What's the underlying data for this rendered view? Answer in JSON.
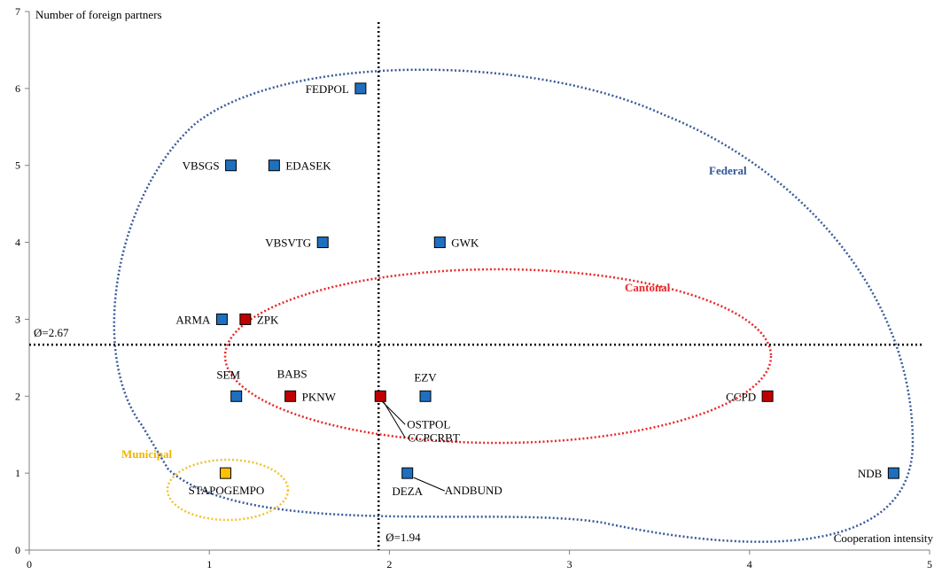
{
  "chart_data": {
    "type": "scatter",
    "ylabel": "Number of foreign partners",
    "xlabel": "Cooperation intensity",
    "xlim": [
      0,
      5
    ],
    "ylim": [
      0,
      7
    ],
    "xticks": [
      "0",
      "1",
      "2",
      "3",
      "4",
      "5"
    ],
    "yticks": [
      "0",
      "1",
      "2",
      "3",
      "4",
      "5",
      "6",
      "7"
    ],
    "grid": false,
    "mean_x": {
      "value": 1.94,
      "label": "Ø=1.94"
    },
    "mean_y": {
      "value": 2.67,
      "label": "Ø=2.67"
    },
    "colors": {
      "Federal": "#1f6fbf",
      "Cantonal": "#c00000",
      "Municipal": "#ffc000",
      "federal_ellipse": "#3a5a9a",
      "cantonal_ellipse": "#e8282a",
      "municipal_ellipse": "#f2c230"
    },
    "groups": [
      {
        "name": "Federal"
      },
      {
        "name": "Cantonal"
      },
      {
        "name": "Municipal"
      }
    ],
    "points": [
      {
        "label": "FEDPOL",
        "x": 1.84,
        "y": 6,
        "group": "Federal"
      },
      {
        "label": "VBSGS",
        "x": 1.12,
        "y": 5,
        "group": "Federal"
      },
      {
        "label": "EDASEK",
        "x": 1.36,
        "y": 5,
        "group": "Federal"
      },
      {
        "label": "VBSVTG",
        "x": 1.63,
        "y": 4,
        "group": "Federal"
      },
      {
        "label": "GWK",
        "x": 2.28,
        "y": 4,
        "group": "Federal"
      },
      {
        "label": "ARMA",
        "x": 1.07,
        "y": 3,
        "group": "Federal"
      },
      {
        "label": "ZPK",
        "x": 1.2,
        "y": 3,
        "group": "Cantonal"
      },
      {
        "label": "SEM",
        "x": 1.15,
        "y": 2,
        "group": "Federal"
      },
      {
        "label": "BABS",
        "x": 1.45,
        "y": 2,
        "group": "Cantonal"
      },
      {
        "label": "PKNW",
        "x": 1.45,
        "y": 2,
        "group": "Cantonal"
      },
      {
        "label": "OSTPOL",
        "x": 1.95,
        "y": 2,
        "group": "Cantonal"
      },
      {
        "label": "CCPCRBT",
        "x": 1.96,
        "y": 2,
        "group": "Cantonal"
      },
      {
        "label": "EZV",
        "x": 2.2,
        "y": 2,
        "group": "Federal"
      },
      {
        "label": "CCPD",
        "x": 4.1,
        "y": 2,
        "group": "Cantonal"
      },
      {
        "label": "STAPOGEMPO",
        "x": 1.09,
        "y": 1,
        "group": "Municipal"
      },
      {
        "label": "DEZA",
        "x": 2.1,
        "y": 1,
        "group": "Federal"
      },
      {
        "label": "ANDBUND",
        "x": 2.11,
        "y": 1,
        "group": "Federal"
      },
      {
        "label": "NDB",
        "x": 4.8,
        "y": 1,
        "group": "Federal"
      }
    ]
  }
}
